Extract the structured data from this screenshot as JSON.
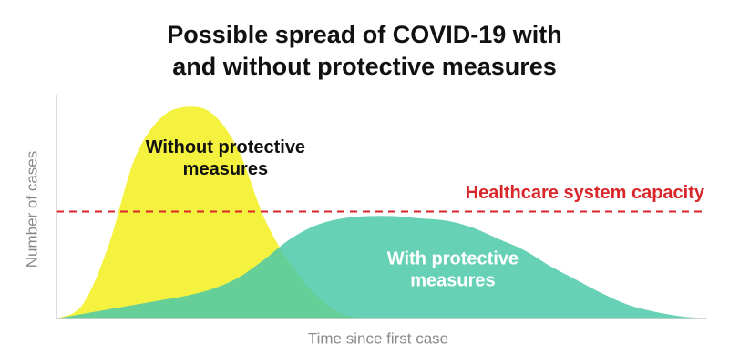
{
  "chart_data": {
    "type": "area",
    "title": [
      "Possible spread of COVID-19 with",
      "and without protective measures"
    ],
    "x_label": "Time since first case",
    "y_label": "Number of cases",
    "xlim": [
      0,
      100
    ],
    "ylim": [
      0,
      100
    ],
    "x": [
      0,
      4,
      8,
      12,
      16,
      20,
      24,
      28,
      32,
      36,
      40,
      44,
      48,
      52,
      56,
      60,
      64,
      68,
      72,
      76,
      80,
      84,
      88,
      92,
      96,
      100
    ],
    "series": [
      {
        "name": [
          "Without protective",
          "measures"
        ],
        "color": "#f5f23f",
        "label_color": "#111111",
        "label_at": [
          26,
          75
        ],
        "values": [
          0,
          6,
          32,
          70,
          88,
          93,
          90,
          74,
          44,
          24,
          10,
          2,
          0,
          0,
          0,
          0,
          0,
          0,
          0,
          0,
          0,
          0,
          0,
          0,
          0,
          0
        ]
      },
      {
        "name": [
          "With protective",
          "measures"
        ],
        "color": "#4cc9a8",
        "label_color": "#ffffff",
        "label_at": [
          61,
          26
        ],
        "values": [
          0,
          2,
          4,
          6,
          8,
          10,
          13,
          18,
          26,
          35,
          41,
          44,
          45,
          45,
          44,
          43,
          40,
          35,
          30,
          23,
          17,
          11,
          6,
          3,
          1,
          0
        ]
      }
    ],
    "reference_line": {
      "label": "Healthcare system capacity",
      "value": 47,
      "color": "#d9262a"
    }
  }
}
